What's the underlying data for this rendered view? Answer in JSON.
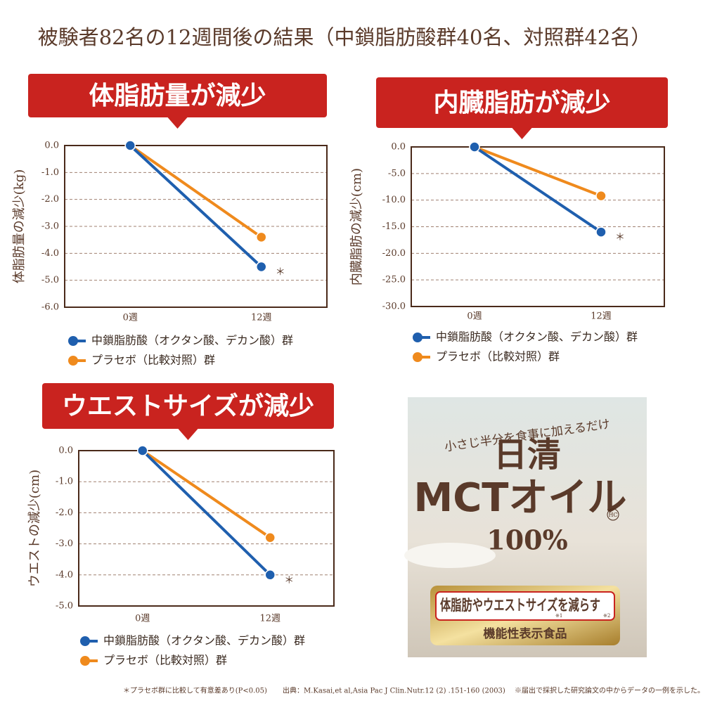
{
  "header": {
    "title": "被験者82名の12週間後の結果（中鎖脂肪酸群40名、対照群42名）"
  },
  "chart_data": [
    {
      "type": "line",
      "title": "体脂肪量が減少",
      "y_label": "体脂肪量の減少(kg)",
      "categories": [
        "0週",
        "12週"
      ],
      "series": [
        {
          "name": "中鎖脂肪酸（オクタン酸、デカン酸）群",
          "color": "#1f5fae",
          "values": [
            0,
            -4.5
          ]
        },
        {
          "name": "プラセボ（比較対照）群",
          "color": "#ef8a1d",
          "values": [
            0,
            -3.4
          ]
        }
      ],
      "ylim": [
        -6,
        0
      ],
      "yticks": [
        {
          "value": 0,
          "label": "0.0"
        },
        {
          "value": -1,
          "label": "-1.0"
        },
        {
          "value": -2,
          "label": "-2.0"
        },
        {
          "value": -3,
          "label": "-3.0"
        },
        {
          "value": -4,
          "label": "-4.0"
        },
        {
          "value": -5,
          "label": "-5.0"
        },
        {
          "value": -6,
          "label": "-6.0"
        }
      ],
      "grid": true,
      "annotation": "＊"
    },
    {
      "type": "line",
      "title": "内臓脂肪が減少",
      "y_label": "内臓脂肪の減少(cm)",
      "categories": [
        "0週",
        "12週"
      ],
      "series": [
        {
          "name": "中鎖脂肪酸（オクタン酸、デカン酸）群",
          "color": "#1f5fae",
          "values": [
            0,
            -16
          ]
        },
        {
          "name": "プラセボ（比較対照）群",
          "color": "#ef8a1d",
          "values": [
            0,
            -9.2
          ]
        }
      ],
      "ylim": [
        -30,
        0
      ],
      "yticks": [
        {
          "value": 0,
          "label": "0.0"
        },
        {
          "value": -5,
          "label": "-5.0"
        },
        {
          "value": -10,
          "label": "-10.0"
        },
        {
          "value": -15,
          "label": "-15.0"
        },
        {
          "value": -20,
          "label": "-20.0"
        },
        {
          "value": -25,
          "label": "-25.0"
        },
        {
          "value": -30,
          "label": "-30.0"
        }
      ],
      "grid": true,
      "annotation": "＊"
    },
    {
      "type": "line",
      "title": "ウエストサイズが減少",
      "y_label": "ウエストの減少(cm)",
      "categories": [
        "0週",
        "12週"
      ],
      "series": [
        {
          "name": "中鎖脂肪酸（オクタン酸、デカン酸）群",
          "color": "#1f5fae",
          "values": [
            0,
            -4.0
          ]
        },
        {
          "name": "プラセボ（比較対照）群",
          "color": "#ef8a1d",
          "values": [
            0,
            -2.8
          ]
        }
      ],
      "ylim": [
        -5,
        0
      ],
      "yticks": [
        {
          "value": 0,
          "label": "0.0"
        },
        {
          "value": -1,
          "label": "-1.0"
        },
        {
          "value": -2,
          "label": "-2.0"
        },
        {
          "value": -3,
          "label": "-3.0"
        },
        {
          "value": -4,
          "label": "-4.0"
        },
        {
          "value": -5,
          "label": "-5.0"
        }
      ],
      "grid": true,
      "annotation": "＊"
    }
  ],
  "product": {
    "tagline": "小さじ半分を食事に加えるだけ",
    "brand": "日清",
    "name": "MCTオイル",
    "mark": "HC",
    "purity": "100%",
    "claim": "体脂肪やウエストサイズを減らす",
    "claim_note1": "※1",
    "claim_note2": "※2",
    "category": "機能性表示食品"
  },
  "footnotes": {
    "significance": "＊プラセボ群に比較して有意差あり(P<0.05)",
    "source": "出典：M.Kasai,et al,Asia Pac J Clin.Nutr.12 (2) .151-160 (2003)",
    "note": "※届出で採択した研究論文の中からデータの一例を示した。"
  }
}
